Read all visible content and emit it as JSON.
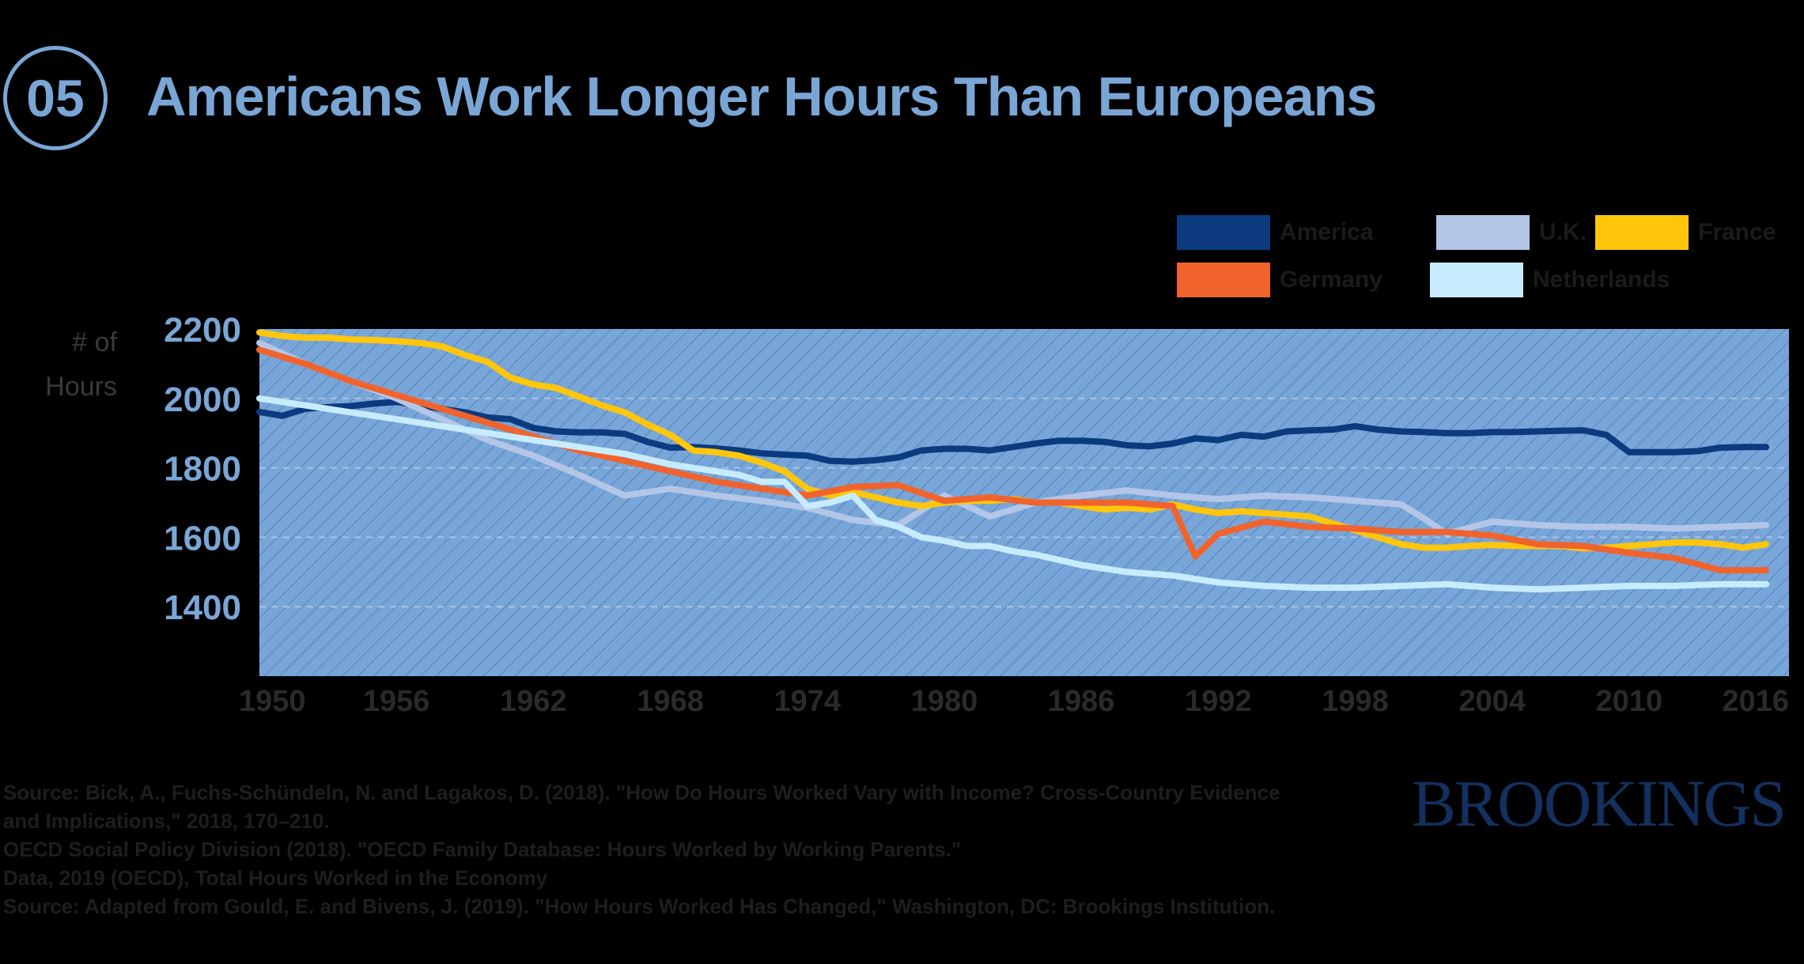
{
  "header": {
    "number": "05",
    "title": "Americans Work Longer Hours Than Europeans"
  },
  "colors": {
    "plot_background": "#78a6d9",
    "accent": "#7aa6d6",
    "brand": "#13305e"
  },
  "brand": "BROOKINGS",
  "source_lines": [
    "Source: Bick, A., Fuchs-Schündeln, N. and Lagakos, D. (2018). \"How Do Hours Worked Vary with Income? Cross-Country Evidence",
    "and Implications,\" 2018, 170–210.",
    "OECD Social Policy Division (2018). \"OECD Family Database: Hours Worked by Working Parents.\"",
    "Data, 2019 (OECD), Total Hours Worked in the Economy",
    "Source: Adapted from Gould, E. and Bivens, J. (2019). \"How Hours Worked Has Changed,\" Washington, DC: Brookings Institution."
  ],
  "chart_data": {
    "type": "line",
    "title": "Americans Work Longer Hours Than Europeans",
    "ylabel": "# of Hours",
    "xlabel": "",
    "ylim": [
      1200,
      2200
    ],
    "xlim": [
      1950,
      2017
    ],
    "yticks": [
      2200,
      2000,
      1800,
      1600,
      1400
    ],
    "xticks": [
      1950,
      1956,
      1962,
      1968,
      1974,
      1980,
      1986,
      1992,
      1998,
      2004,
      2010,
      2016
    ],
    "grid": false,
    "legend_position": "top-right",
    "series": [
      {
        "name": "America",
        "color": "#0b3a7e",
        "x": [
          1950,
          1951,
          1952,
          1953,
          1954,
          1955,
          1956,
          1957,
          1958,
          1959,
          1960,
          1961,
          1962,
          1963,
          1964,
          1965,
          1966,
          1967,
          1968,
          1969,
          1970,
          1971,
          1972,
          1973,
          1974,
          1975,
          1976,
          1977,
          1978,
          1979,
          1980,
          1981,
          1982,
          1983,
          1984,
          1985,
          1986,
          1987,
          1988,
          1989,
          1990,
          1991,
          1992,
          1993,
          1994,
          1995,
          1996,
          1997,
          1998,
          1999,
          2000,
          2001,
          2002,
          2003,
          2004,
          2005,
          2006,
          2007,
          2008,
          2009,
          2010,
          2011,
          2012,
          2013,
          2014,
          2015,
          2016
        ],
        "values": [
          1961,
          1950,
          1970,
          1975,
          1978,
          1985,
          1990,
          1980,
          1970,
          1960,
          1945,
          1940,
          1915,
          1905,
          1902,
          1902,
          1898,
          1875,
          1858,
          1860,
          1856,
          1850,
          1842,
          1838,
          1835,
          1820,
          1818,
          1822,
          1830,
          1850,
          1855,
          1855,
          1850,
          1860,
          1870,
          1878,
          1878,
          1875,
          1865,
          1862,
          1870,
          1885,
          1880,
          1895,
          1890,
          1905,
          1908,
          1910,
          1920,
          1910,
          1905,
          1903,
          1900,
          1900,
          1903,
          1903,
          1905,
          1907,
          1908,
          1895,
          1845,
          1845,
          1845,
          1848,
          1858,
          1860,
          1860
        ]
      },
      {
        "name": "U.K.",
        "color": "#b3c6e7",
        "x": [
          1950,
          1952,
          1954,
          1956,
          1958,
          1960,
          1962,
          1964,
          1966,
          1968,
          1970,
          1972,
          1974,
          1976,
          1978,
          1980,
          1982,
          1984,
          1986,
          1988,
          1990,
          1992,
          1994,
          1996,
          1998,
          2000,
          2001,
          2002,
          2004,
          2006,
          2008,
          2010,
          2012,
          2014,
          2016
        ],
        "values": [
          2160,
          2100,
          2050,
          2000,
          1940,
          1880,
          1835,
          1780,
          1720,
          1740,
          1720,
          1705,
          1685,
          1650,
          1635,
          1720,
          1660,
          1700,
          1720,
          1735,
          1720,
          1710,
          1720,
          1715,
          1705,
          1695,
          1655,
          1610,
          1645,
          1635,
          1630,
          1630,
          1625,
          1630,
          1635
        ]
      },
      {
        "name": "France",
        "color": "#ffc60b",
        "x": [
          1950,
          1951,
          1952,
          1953,
          1954,
          1955,
          1956,
          1957,
          1958,
          1959,
          1960,
          1961,
          1962,
          1963,
          1964,
          1965,
          1966,
          1967,
          1968,
          1969,
          1970,
          1971,
          1972,
          1973,
          1974,
          1975,
          1976,
          1977,
          1978,
          1979,
          1980,
          1981,
          1982,
          1983,
          1984,
          1985,
          1986,
          1987,
          1988,
          1989,
          1990,
          1991,
          1992,
          1993,
          1994,
          1995,
          1996,
          1997,
          1998,
          1999,
          2000,
          2001,
          2002,
          2003,
          2004,
          2005,
          2006,
          2007,
          2008,
          2009,
          2010,
          2011,
          2012,
          2013,
          2014,
          2015,
          2016
        ],
        "values": [
          2190,
          2180,
          2175,
          2175,
          2170,
          2168,
          2165,
          2160,
          2150,
          2125,
          2105,
          2060,
          2040,
          2030,
          2005,
          1980,
          1960,
          1925,
          1895,
          1850,
          1845,
          1835,
          1815,
          1790,
          1740,
          1720,
          1730,
          1715,
          1700,
          1690,
          1700,
          1705,
          1705,
          1710,
          1700,
          1700,
          1690,
          1680,
          1685,
          1680,
          1695,
          1680,
          1670,
          1675,
          1670,
          1665,
          1660,
          1640,
          1620,
          1600,
          1580,
          1570,
          1570,
          1575,
          1578,
          1575,
          1575,
          1575,
          1568,
          1570,
          1575,
          1580,
          1585,
          1585,
          1580,
          1570,
          1580
        ]
      },
      {
        "name": "Germany",
        "color": "#f1632c",
        "x": [
          1950,
          1952,
          1954,
          1956,
          1958,
          1960,
          1962,
          1964,
          1966,
          1968,
          1970,
          1972,
          1974,
          1976,
          1978,
          1980,
          1982,
          1984,
          1986,
          1988,
          1990,
          1991,
          1992,
          1994,
          1996,
          1998,
          2000,
          2002,
          2004,
          2006,
          2008,
          2010,
          2012,
          2014,
          2016
        ],
        "values": [
          2140,
          2100,
          2050,
          2010,
          1970,
          1930,
          1890,
          1850,
          1820,
          1790,
          1760,
          1740,
          1720,
          1745,
          1750,
          1705,
          1715,
          1700,
          1700,
          1700,
          1690,
          1545,
          1610,
          1645,
          1630,
          1625,
          1615,
          1615,
          1605,
          1580,
          1575,
          1555,
          1540,
          1505,
          1505
        ]
      },
      {
        "name": "Netherlands",
        "color": "#c7ecff",
        "x": [
          1950,
          1952,
          1954,
          1956,
          1958,
          1960,
          1962,
          1964,
          1966,
          1968,
          1970,
          1971,
          1972,
          1973,
          1974,
          1975,
          1976,
          1977,
          1978,
          1979,
          1980,
          1981,
          1982,
          1983,
          1984,
          1986,
          1988,
          1990,
          1992,
          1994,
          1996,
          1998,
          2000,
          2002,
          2004,
          2006,
          2008,
          2010,
          2012,
          2014,
          2016
        ],
        "values": [
          2000,
          1980,
          1960,
          1940,
          1920,
          1900,
          1880,
          1860,
          1840,
          1810,
          1790,
          1780,
          1760,
          1760,
          1690,
          1700,
          1720,
          1650,
          1630,
          1600,
          1590,
          1575,
          1575,
          1560,
          1550,
          1520,
          1500,
          1490,
          1470,
          1460,
          1455,
          1455,
          1460,
          1465,
          1455,
          1450,
          1455,
          1460,
          1460,
          1465,
          1465
        ]
      }
    ]
  }
}
